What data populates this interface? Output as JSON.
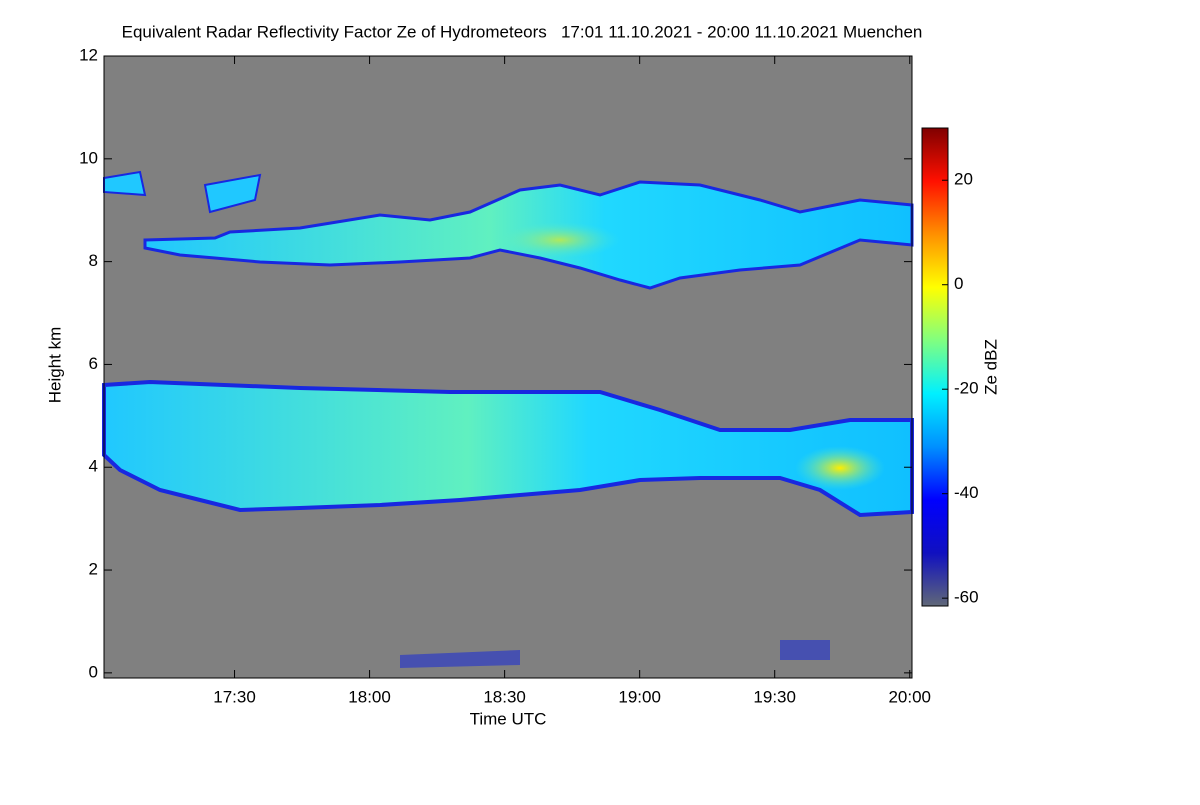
{
  "chart_data": {
    "type": "heatmap",
    "title": "Equivalent Radar Reflectivity Factor Ze of Hydrometeors   17:01 11.10.2021 - 20:00 11.10.2021 Muenchen",
    "x_label": "Time UTC",
    "y_label": "Height km",
    "xlim": [
      1021,
      1200.5
    ],
    "xticks": [
      {
        "value": 1050,
        "label": "17:30"
      },
      {
        "value": 1080,
        "label": "18:00"
      },
      {
        "value": 1110,
        "label": "18:30"
      },
      {
        "value": 1140,
        "label": "19:00"
      },
      {
        "value": 1170,
        "label": "19:30"
      },
      {
        "value": 1200,
        "label": "20:00"
      }
    ],
    "ylim": [
      -0.1,
      12
    ],
    "yticks": [
      0,
      2,
      4,
      6,
      8,
      10,
      12
    ],
    "background": "#808080",
    "colorbar": {
      "label": "Ze dBZ",
      "zlim": [
        -61.5,
        30
      ],
      "ticks": [
        -60,
        -40,
        -20,
        0,
        20
      ],
      "colors": [
        "#606878",
        "#1010c0",
        "#0000ff",
        "#0090ff",
        "#00f0ff",
        "#80ff80",
        "#ffff00",
        "#ff9000",
        "#ff1000",
        "#800000"
      ]
    }
  }
}
